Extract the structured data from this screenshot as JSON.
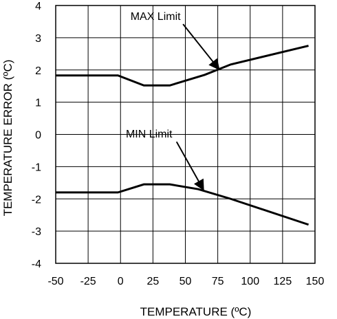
{
  "chart_data": {
    "type": "line",
    "title": "",
    "xlabel": "TEMPERATURE (ºC)",
    "ylabel": "TEMPERATURE ERROR (ºC)",
    "xlim": [
      -50,
      150
    ],
    "ylim": [
      -4,
      4
    ],
    "x_ticks": [
      -50,
      -25,
      0,
      25,
      50,
      75,
      100,
      125,
      150
    ],
    "y_ticks": [
      4,
      3,
      2,
      1,
      0,
      -1,
      -2,
      -3,
      -4
    ],
    "grid": true,
    "legend": "none",
    "series": [
      {
        "x": [
          -50,
          -2,
          18,
          38,
          65,
          85,
          145
        ],
        "y": [
          1.83,
          1.83,
          1.52,
          1.52,
          1.85,
          2.17,
          2.75
        ],
        "color": "#000000"
      },
      {
        "x": [
          -50,
          -2,
          18,
          38,
          60,
          85,
          145
        ],
        "y": [
          -1.8,
          -1.8,
          -1.55,
          -1.55,
          -1.7,
          -2.0,
          -2.8
        ],
        "color": "#000000"
      }
    ],
    "annotations": [
      {
        "text": "MAX Limit",
        "text_pos": [
          27,
          3.55
        ],
        "arrow_to": [
          76,
          2.02
        ]
      },
      {
        "text": "MIN Limit",
        "text_pos": [
          22,
          -0.1
        ],
        "arrow_to": [
          64,
          -1.72
        ]
      }
    ]
  }
}
